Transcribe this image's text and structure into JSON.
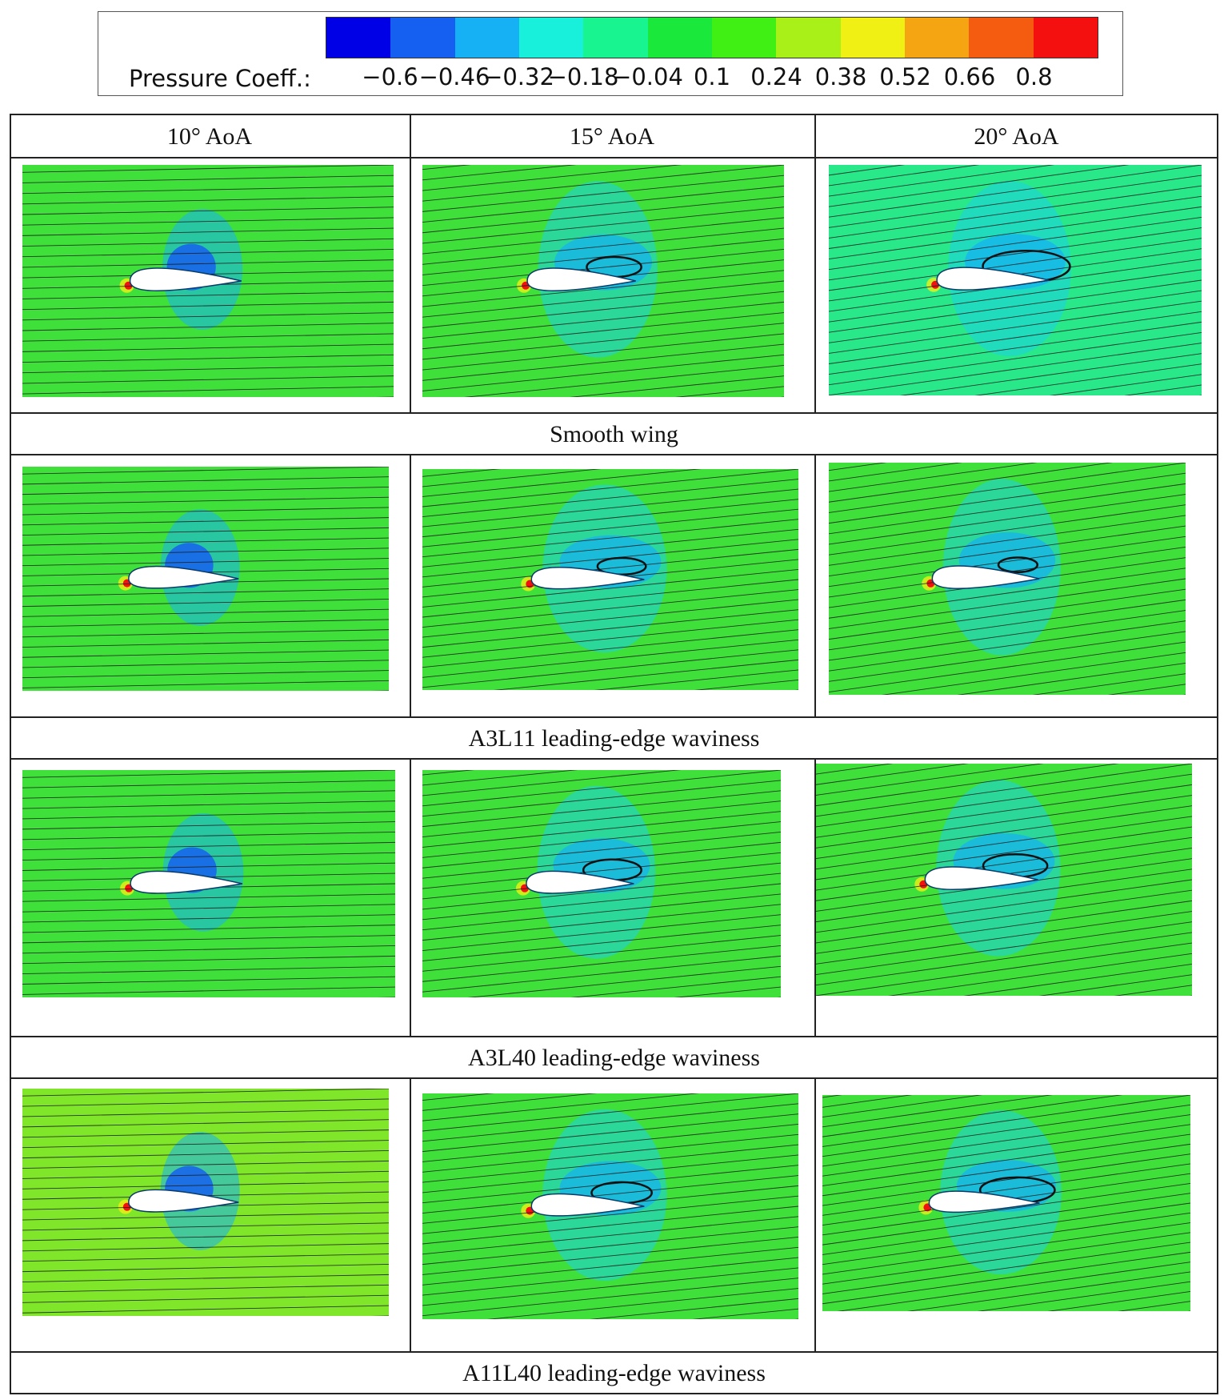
{
  "legend": {
    "title": "Pressure Coeff.:",
    "ticks": [
      "−0.6",
      "−0.46",
      "−0.32",
      "−0.18",
      "−0.04",
      "0.1",
      "0.24",
      "0.38",
      "0.52",
      "0.66",
      "0.8"
    ],
    "colors": [
      "#0000e6",
      "#1560f0",
      "#16b0f5",
      "#18f0dc",
      "#18f590",
      "#1ae83a",
      "#40f015",
      "#a8f018",
      "#f0f015",
      "#f5a512",
      "#f55c10",
      "#f51010"
    ]
  },
  "columns": [
    "10° AoA",
    "15° AoA",
    "20° AoA"
  ],
  "rows": [
    {
      "caption": "Smooth wing",
      "angles": [
        10,
        15,
        20
      ],
      "separation": [
        0.0,
        0.55,
        0.95
      ]
    },
    {
      "caption": "A3L11 leading-edge waviness",
      "angles": [
        10,
        15,
        20
      ],
      "separation": [
        0.0,
        0.45,
        0.35
      ]
    },
    {
      "caption": "A3L40 leading-edge waviness",
      "angles": [
        10,
        15,
        20
      ],
      "separation": [
        0.0,
        0.6,
        0.65
      ]
    },
    {
      "caption": "A11L40 leading-edge waviness",
      "angles": [
        10,
        15,
        20
      ],
      "separation": [
        0.0,
        0.6,
        0.8
      ]
    }
  ]
}
